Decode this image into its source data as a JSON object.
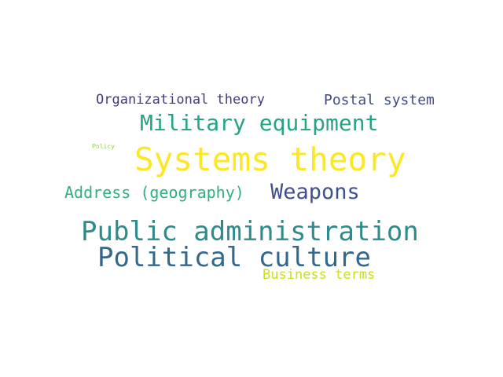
{
  "words": [
    {
      "text": "Systems theory",
      "color": "#fde725"
    },
    {
      "text": "Public administration",
      "color": "#2c8c8c"
    },
    {
      "text": "Political culture",
      "color": "#33688d"
    },
    {
      "text": "Military equipment",
      "color": "#22a485"
    },
    {
      "text": "Weapons",
      "color": "#3e5189"
    },
    {
      "text": "Address (geography)",
      "color": "#2db27d"
    },
    {
      "text": "Postal system",
      "color": "#404a86"
    },
    {
      "text": "Organizational theory",
      "color": "#453a80"
    },
    {
      "text": "Business terms",
      "color": "#c8e020"
    },
    {
      "text": "Policy",
      "color": "#8ed645"
    }
  ]
}
